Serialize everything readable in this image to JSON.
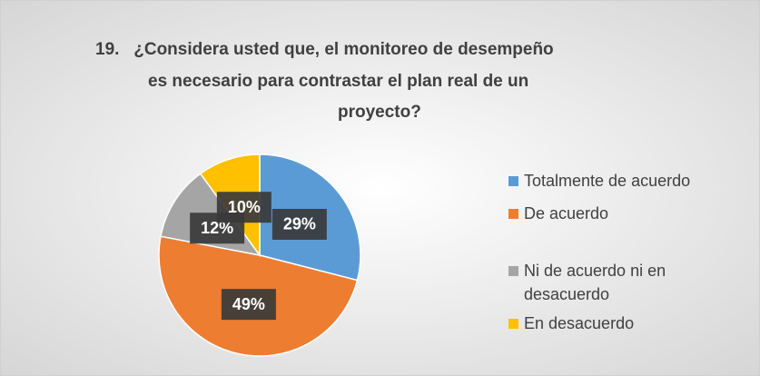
{
  "chart_data": {
    "type": "pie",
    "title": [
      "19.   ¿Considera usted que, el monitoreo de desempeño",
      "es necesario para contrastar el plan real de un",
      "proyecto?"
    ],
    "categories": [
      "Totalmente de acuerdo",
      "De acuerdo",
      "Ni de acuerdo ni en desacuerdo",
      "En desacuerdo"
    ],
    "values": [
      29,
      49,
      12,
      10
    ],
    "value_labels": [
      "29%",
      "49%",
      "12%",
      "10%"
    ],
    "colors": [
      "#5b9bd5",
      "#ed7d31",
      "#a5a5a5",
      "#ffc000"
    ],
    "legend": "right"
  }
}
